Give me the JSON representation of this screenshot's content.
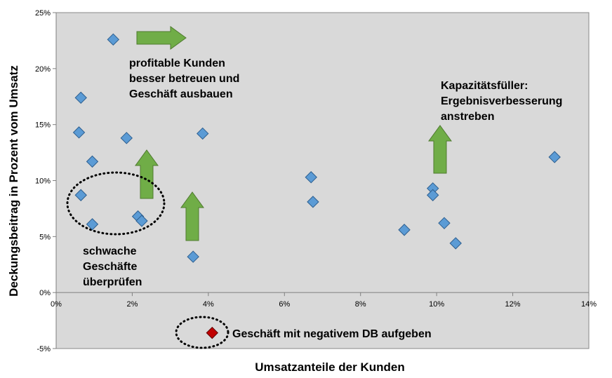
{
  "chart_data": {
    "type": "scatter",
    "xlabel": "Umsatzanteile der Kunden",
    "ylabel": "Deckungsbeitrag in Prozent vom Umsatz",
    "xlim": [
      0,
      14
    ],
    "ylim": [
      -5,
      25
    ],
    "x_ticks": [
      "0%",
      "2%",
      "4%",
      "6%",
      "8%",
      "10%",
      "12%",
      "14%"
    ],
    "y_ticks": [
      "-5%",
      "0%",
      "5%",
      "10%",
      "15%",
      "20%",
      "25%"
    ],
    "grid": false,
    "plot_background": "#d9d9d9",
    "marker_color": "#5b9bd5",
    "highlight_color": "#c00000",
    "arrow_color": "#70ad47",
    "series": [
      {
        "points": [
          {
            "x": 1.5,
            "y": 22.6
          },
          {
            "x": 0.65,
            "y": 17.4
          },
          {
            "x": 0.6,
            "y": 14.3
          },
          {
            "x": 1.85,
            "y": 13.8
          },
          {
            "x": 3.85,
            "y": 14.2
          },
          {
            "x": 0.95,
            "y": 11.7
          },
          {
            "x": 0.65,
            "y": 8.7
          },
          {
            "x": 0.95,
            "y": 6.1
          },
          {
            "x": 2.15,
            "y": 6.8
          },
          {
            "x": 2.25,
            "y": 6.4
          },
          {
            "x": 3.6,
            "y": 3.2
          },
          {
            "x": 6.7,
            "y": 10.3
          },
          {
            "x": 6.75,
            "y": 8.1
          },
          {
            "x": 9.15,
            "y": 5.6
          },
          {
            "x": 9.9,
            "y": 9.3
          },
          {
            "x": 9.9,
            "y": 8.7
          },
          {
            "x": 10.2,
            "y": 6.2
          },
          {
            "x": 10.5,
            "y": 4.4
          },
          {
            "x": 13.1,
            "y": 12.1
          }
        ]
      },
      {
        "points": [
          {
            "x": 4.1,
            "y": -3.6
          }
        ]
      }
    ],
    "annotations": {
      "profitable": [
        "profitable Kunden",
        "besser betreuen und",
        "Geschäft ausbauen"
      ],
      "capacity": [
        "Kapazitätsfüller:",
        "Ergebnisverbesserung",
        "anstreben"
      ],
      "weak": [
        "schwache",
        "Geschäfte",
        "überprüfen"
      ],
      "negative": "Geschäft mit negativem DB aufgeben"
    }
  }
}
